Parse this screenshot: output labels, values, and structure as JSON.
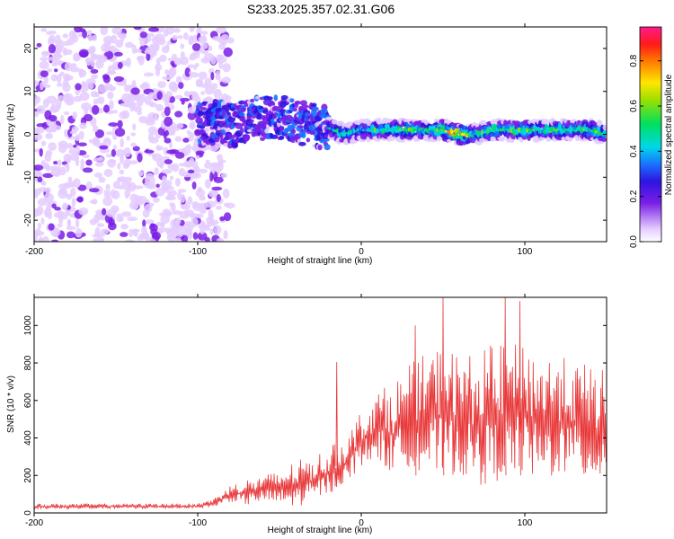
{
  "title": "S233.2025.357.02.31.G06",
  "chart_data": [
    {
      "type": "heatmap",
      "xlabel": "Height of straight line (km)",
      "ylabel": "Frequency (Hz)",
      "xlim": [
        -200,
        150
      ],
      "ylim": [
        -25,
        25
      ],
      "x_ticks": [
        -200,
        -100,
        0,
        100
      ],
      "y_ticks": [
        -20,
        -10,
        0,
        10,
        20
      ],
      "colorbar": {
        "label": "Normalized spectral amplitude",
        "range": [
          0,
          0.95
        ],
        "ticks": [
          0.0,
          0.2,
          0.4,
          0.6,
          0.8
        ],
        "tick_labels": [
          "0.0",
          "0.2",
          "0.4",
          "0.6",
          "0.8"
        ]
      },
      "noise_region_x": [
        -200,
        -90
      ],
      "ridge": {
        "x": [
          -100,
          -90,
          -80,
          -70,
          -60,
          -50,
          -40,
          -30,
          -20,
          -10,
          0,
          10,
          20,
          30,
          40,
          50,
          60,
          70,
          80,
          90,
          100,
          110,
          120,
          130,
          140,
          150
        ],
        "frequency": [
          2,
          3,
          2,
          3,
          4,
          4,
          3,
          2,
          1.5,
          0,
          1,
          1,
          1,
          1,
          1,
          1,
          0,
          0,
          1,
          1,
          1,
          1,
          1,
          1,
          1,
          0
        ],
        "peak_amplitude": [
          0.25,
          0.25,
          0.3,
          0.3,
          0.3,
          0.35,
          0.3,
          0.3,
          0.55,
          0.6,
          0.5,
          0.6,
          0.6,
          0.75,
          0.55,
          0.8,
          0.95,
          0.6,
          0.7,
          0.6,
          0.7,
          0.6,
          0.7,
          0.6,
          0.7,
          0.6
        ]
      }
    },
    {
      "type": "line",
      "xlabel": "Height of straight line (km)",
      "ylabel": "SNR (10 * v/v)",
      "xlim": [
        -200,
        150
      ],
      "ylim": [
        0,
        1150
      ],
      "x_ticks": [
        -200,
        -100,
        0,
        100
      ],
      "y_ticks": [
        0,
        200,
        400,
        600,
        800,
        1000
      ],
      "color": "#e8383a",
      "envelope": {
        "x": [
          -200,
          -100,
          -90,
          -80,
          -70,
          -60,
          -50,
          -40,
          -30,
          -20,
          -10,
          0,
          10,
          20,
          30,
          40,
          50,
          60,
          70,
          80,
          90,
          100,
          110,
          120,
          130,
          140,
          150
        ],
        "low": [
          20,
          25,
          30,
          60,
          40,
          60,
          40,
          30,
          60,
          100,
          150,
          250,
          280,
          200,
          250,
          200,
          200,
          200,
          150,
          150,
          200,
          200,
          150,
          200,
          200,
          150,
          200
        ],
        "high": [
          50,
          50,
          80,
          150,
          180,
          200,
          230,
          280,
          300,
          350,
          400,
          550,
          650,
          700,
          800,
          850,
          900,
          850,
          850,
          900,
          900,
          900,
          850,
          850,
          800,
          800,
          750
        ]
      },
      "notable_peaks": [
        [
          -15,
          805
        ],
        [
          33,
          1000
        ],
        [
          50,
          1150
        ],
        [
          88,
          1150
        ],
        [
          97,
          1130
        ]
      ]
    }
  ]
}
